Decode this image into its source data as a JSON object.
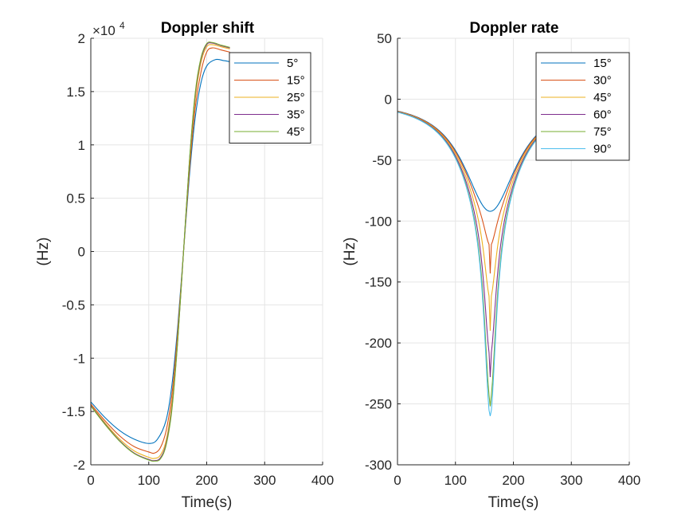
{
  "chart_data": [
    {
      "type": "line",
      "title": "Doppler shift",
      "xlabel": "Time(s)",
      "ylabel": "(Hz)",
      "xlim": [
        0,
        400
      ],
      "ylim": [
        -20000,
        20000
      ],
      "x_ticks": [
        0,
        100,
        200,
        300,
        400
      ],
      "y_ticks": [
        -20000,
        -15000,
        -10000,
        -5000,
        0,
        5000,
        10000,
        15000,
        20000
      ],
      "y_tick_labels": [
        "-2",
        "-1.5",
        "-1",
        "-0.5",
        "0",
        "0.5",
        "1",
        "1.5",
        "2"
      ],
      "x_tick_labels": [
        "0",
        "100",
        "200",
        "300",
        "400"
      ],
      "y_exponent": "×10",
      "y_exponent_power": "4",
      "grid": true,
      "legend_position": "top-right",
      "series": [
        {
          "name": "5°",
          "color": "#0072BD",
          "x": [
            0,
            25,
            50,
            75,
            100,
            115,
            130,
            140,
            150,
            160,
            170,
            180,
            190,
            200,
            215,
            230,
            240
          ],
          "y": [
            -14100,
            -15600,
            -16800,
            -17600,
            -18000,
            -17600,
            -15800,
            -12500,
            -7000,
            0,
            7000,
            12500,
            15800,
            17400,
            18000,
            17900,
            17800
          ]
        },
        {
          "name": "15°",
          "color": "#D95319",
          "x": [
            0,
            25,
            50,
            75,
            100,
            110,
            120,
            130,
            140,
            150,
            160,
            170,
            180,
            190,
            200,
            210,
            225,
            240
          ],
          "y": [
            -14300,
            -15900,
            -17300,
            -18300,
            -18800,
            -18900,
            -18400,
            -16800,
            -13400,
            -7500,
            0,
            7500,
            13400,
            16800,
            18700,
            19100,
            18900,
            18700
          ]
        },
        {
          "name": "25°",
          "color": "#EDB120",
          "x": [
            0,
            25,
            50,
            75,
            100,
            110,
            120,
            130,
            140,
            150,
            160,
            170,
            180,
            190,
            200,
            210,
            225,
            240
          ],
          "y": [
            -14400,
            -16100,
            -17600,
            -18700,
            -19300,
            -19400,
            -19100,
            -17700,
            -14200,
            -8000,
            0,
            8000,
            14200,
            17700,
            19200,
            19400,
            19200,
            19000
          ]
        },
        {
          "name": "35°",
          "color": "#7E2F8E",
          "x": [
            0,
            25,
            50,
            75,
            100,
            110,
            120,
            130,
            140,
            150,
            160,
            170,
            180,
            190,
            200,
            210,
            225,
            240
          ],
          "y": [
            -14450,
            -16200,
            -17750,
            -18900,
            -19500,
            -19600,
            -19350,
            -18000,
            -14600,
            -8300,
            0,
            8300,
            14600,
            18000,
            19400,
            19550,
            19300,
            19100
          ]
        },
        {
          "name": "45°",
          "color": "#77AC30",
          "x": [
            0,
            25,
            50,
            75,
            100,
            110,
            120,
            130,
            140,
            150,
            160,
            170,
            180,
            190,
            200,
            210,
            225,
            240
          ],
          "y": [
            -14500,
            -16250,
            -17800,
            -18950,
            -19550,
            -19650,
            -19450,
            -18150,
            -14800,
            -8400,
            0,
            8400,
            14800,
            18150,
            19500,
            19600,
            19350,
            19150
          ]
        }
      ]
    },
    {
      "type": "line",
      "title": "Doppler rate",
      "xlabel": "Time(s)",
      "ylabel": "(Hz)",
      "xlim": [
        0,
        400
      ],
      "ylim": [
        -300,
        50
      ],
      "x_ticks": [
        0,
        100,
        200,
        300,
        400
      ],
      "y_ticks": [
        -300,
        -250,
        -200,
        -150,
        -100,
        -50,
        0,
        50
      ],
      "y_tick_labels": [
        "-300",
        "-250",
        "-200",
        "-150",
        "-100",
        "-50",
        "0",
        "50"
      ],
      "x_tick_labels": [
        "0",
        "100",
        "200",
        "300",
        "400"
      ],
      "grid": true,
      "legend_position": "top-right",
      "series": [
        {
          "name": "15°",
          "color": "#0072BD",
          "peak": -92
        },
        {
          "name": "30°",
          "color": "#D95319",
          "peak": -143
        },
        {
          "name": "45°",
          "color": "#EDB120",
          "peak": -190
        },
        {
          "name": "60°",
          "color": "#7E2F8E",
          "peak": -228
        },
        {
          "name": "75°",
          "color": "#77AC30",
          "peak": -252
        },
        {
          "name": "90°",
          "color": "#4DBEEE",
          "peak": -260
        }
      ],
      "x_range_plotted": [
        0,
        240
      ],
      "peak_time": 160
    }
  ]
}
